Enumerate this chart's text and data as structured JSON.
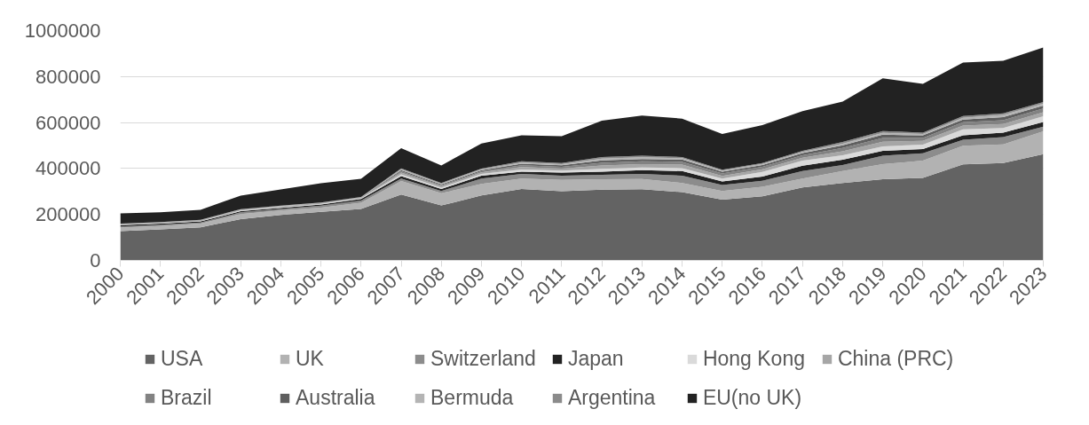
{
  "chart_data": {
    "type": "area",
    "stacked": true,
    "grid": "y",
    "legend": "bottom",
    "x": [
      2000,
      2001,
      2002,
      2003,
      2004,
      2005,
      2006,
      2007,
      2008,
      2009,
      2010,
      2011,
      2012,
      2013,
      2014,
      2015,
      2016,
      2017,
      2018,
      2019,
      2020,
      2021,
      2022,
      2023
    ],
    "xlim": [
      2000,
      2023
    ],
    "xticks": [
      2000,
      2001,
      2002,
      2003,
      2004,
      2005,
      2006,
      2007,
      2008,
      2009,
      2010,
      2011,
      2012,
      2013,
      2014,
      2015,
      2016,
      2017,
      2018,
      2019,
      2020,
      2021,
      2022,
      2023
    ],
    "ylim": [
      0,
      1000000
    ],
    "yticks": [
      0,
      200000,
      400000,
      600000,
      800000,
      1000000
    ],
    "series": [
      {
        "name": "USA",
        "color": "#636363",
        "values": [
          127000,
          135000,
          144000,
          180000,
          198000,
          211000,
          224000,
          287000,
          239000,
          283000,
          311000,
          301000,
          308000,
          310000,
          297000,
          264000,
          279000,
          318000,
          337000,
          353000,
          359000,
          418000,
          424000,
          462000
        ]
      },
      {
        "name": "UK",
        "color": "#b2b2b2",
        "values": [
          16000,
          15000,
          16000,
          22000,
          19000,
          19000,
          27000,
          59000,
          53000,
          50000,
          45000,
          49000,
          45000,
          44000,
          40000,
          38000,
          41000,
          38000,
          52000,
          66000,
          75000,
          81000,
          81000,
          100000
        ]
      },
      {
        "name": "Switzerland",
        "color": "#8c8c8c",
        "values": [
          5000,
          5000,
          5000,
          7000,
          7000,
          8000,
          10000,
          10000,
          10000,
          23000,
          20000,
          19000,
          20000,
          22000,
          32000,
          26000,
          27000,
          33000,
          26000,
          37000,
          32000,
          26000,
          32000,
          20000
        ]
      },
      {
        "name": "Japan",
        "color": "#222222",
        "values": [
          5000,
          5000,
          5000,
          5000,
          5000,
          5000,
          6000,
          11000,
          9000,
          13000,
          10000,
          13000,
          13000,
          17000,
          20000,
          16000,
          18000,
          23000,
          23000,
          21000,
          19000,
          19000,
          19000,
          20000
        ]
      },
      {
        "name": "Hong Kong",
        "color": "#dadada",
        "values": [
          2000,
          2000,
          2000,
          3000,
          3000,
          3000,
          3000,
          8000,
          6000,
          7000,
          10000,
          9000,
          13000,
          11000,
          13000,
          12000,
          20000,
          22000,
          20000,
          19000,
          19000,
          26000,
          20000,
          25000
        ]
      },
      {
        "name": "China (PRC)",
        "color": "#a6a6a6",
        "values": [
          1000,
          1000,
          1000,
          2000,
          2000,
          2000,
          2000,
          7000,
          6000,
          7000,
          10000,
          9000,
          14000,
          15000,
          15000,
          12000,
          12000,
          13000,
          17000,
          20000,
          16000,
          17000,
          18000,
          18000
        ]
      },
      {
        "name": "Brazil",
        "color": "#828282",
        "values": [
          1000,
          1000,
          1000,
          1000,
          1000,
          1000,
          1000,
          6000,
          4000,
          5000,
          8000,
          7000,
          12000,
          12000,
          12000,
          10000,
          10000,
          11000,
          14000,
          17000,
          13000,
          14000,
          16000,
          16000
        ]
      },
      {
        "name": "Australia",
        "color": "#5f5f5f",
        "values": [
          1000,
          1000,
          1000,
          1000,
          1000,
          1000,
          1000,
          5000,
          4000,
          5000,
          7000,
          7000,
          10000,
          10000,
          10000,
          8000,
          8000,
          9000,
          12000,
          14000,
          11000,
          12000,
          14000,
          13000
        ]
      },
      {
        "name": "Bermuda",
        "color": "#b4b4b4",
        "values": [
          1000,
          1000,
          1000,
          1000,
          1000,
          1000,
          1000,
          4000,
          3000,
          4000,
          5000,
          5000,
          8000,
          8000,
          6000,
          5000,
          5000,
          5000,
          7000,
          8000,
          6000,
          8000,
          9000,
          8000
        ]
      },
      {
        "name": "Argentina",
        "color": "#8b8b8b",
        "values": [
          1000,
          1000,
          1000,
          1000,
          1000,
          1000,
          1000,
          4000,
          3000,
          3000,
          5000,
          5000,
          7000,
          7000,
          5000,
          4000,
          4000,
          5000,
          7000,
          8000,
          6000,
          7000,
          7000,
          7000
        ]
      },
      {
        "name": "EU(no UK)",
        "color": "#222222",
        "values": [
          45000,
          42000,
          43000,
          59000,
          71000,
          84000,
          79000,
          87000,
          76000,
          109000,
          113000,
          117000,
          158000,
          174000,
          167000,
          155000,
          165000,
          173000,
          176000,
          229000,
          212000,
          233000,
          229000,
          238000
        ]
      }
    ]
  }
}
